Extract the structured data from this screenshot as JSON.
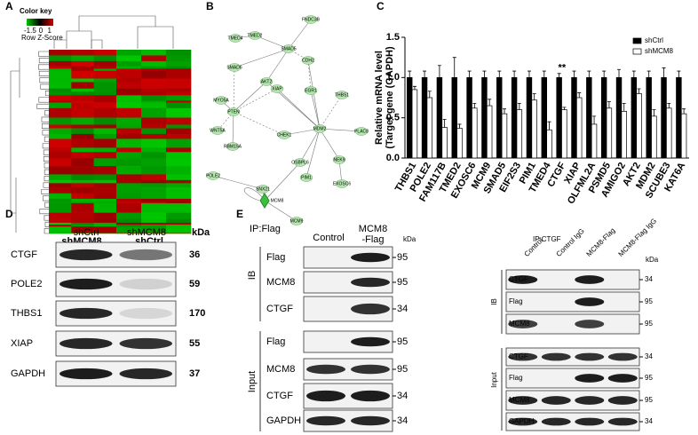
{
  "panel_labels": [
    "A",
    "B",
    "C",
    "D",
    "E"
  ],
  "heatmap": {
    "key_title": "Color key",
    "key_ticks": [
      "-1.5",
      "0",
      "1"
    ],
    "key_label": "Row Z-Score",
    "groups": [
      "shMCM8",
      "shCtrl"
    ]
  },
  "network": {
    "nodes": [
      "TMED4",
      "TMED2",
      "FNDC3B",
      "SMAD5",
      "CDH2",
      "SMAD6",
      "AKT2",
      "XIAP",
      "EGR1",
      "THBS1",
      "MYO5A",
      "PTEN",
      "WNT5A",
      "RBM15A",
      "CHEK1",
      "MDM2",
      "PLAC8",
      "POLE2",
      "SNX21",
      "OSBPL6",
      "PIM1",
      "NEK9",
      "EXOSC6",
      "MCM8",
      "MCM9"
    ]
  },
  "chart_data": {
    "type": "bar",
    "ylabel": [
      "Relative mRNA level",
      "(Target gene (GAPDH)"
    ],
    "categories": [
      "THBS1",
      "POLE2",
      "FAM117B",
      "TMED2",
      "EXOSC6",
      "MCM9",
      "SMAD5",
      "EIF2S3",
      "PIM1",
      "TMED4",
      "CTGF",
      "XIAP",
      "OLFML2A",
      "PSMD5",
      "AMIGO2",
      "AKT2",
      "MDM2",
      "SCUBE3",
      "KAT6A"
    ],
    "series": [
      {
        "name": "shCtrl",
        "color": "#000000",
        "values": [
          1,
          1,
          1,
          1,
          1,
          1,
          1,
          1,
          1,
          1,
          1,
          1,
          1,
          1,
          1,
          1,
          1,
          1,
          1
        ],
        "errors": [
          0.08,
          0.08,
          0.15,
          0.25,
          0.08,
          0.08,
          0.08,
          0.08,
          0.08,
          0.08,
          0.05,
          0.08,
          0.08,
          0.08,
          0.1,
          0.08,
          0.08,
          0.12,
          0.08
        ]
      },
      {
        "name": "shMCM8",
        "color": "#ffffff",
        "values": [
          0.85,
          0.75,
          0.38,
          0.37,
          0.62,
          0.65,
          0.55,
          0.6,
          0.72,
          0.35,
          0.6,
          0.75,
          0.42,
          0.62,
          0.58,
          0.8,
          0.52,
          0.62,
          0.55
        ],
        "errors": [
          0.04,
          0.08,
          0.1,
          0.05,
          0.06,
          0.08,
          0.06,
          0.08,
          0.08,
          0.1,
          0.03,
          0.06,
          0.1,
          0.08,
          0.1,
          0.06,
          0.08,
          0.06,
          0.06
        ]
      }
    ],
    "annotation": "**",
    "ylim": [
      0,
      1.5
    ],
    "yticks": [
      {
        "value": 0,
        "label": "0.0"
      },
      {
        "value": 0.5,
        "label": "0.5"
      },
      {
        "value": 1,
        "label": "1.0"
      },
      {
        "value": 1.5,
        "label": "1.5"
      }
    ],
    "legend": "upper right"
  },
  "blot_d": {
    "columns": [
      "shCtrl",
      "shMCM8"
    ],
    "unit": "kDa",
    "rows": [
      {
        "label": "CTGF",
        "kda": 36
      },
      {
        "label": "POLE2",
        "kda": 59
      },
      {
        "label": "THBS1",
        "kda": 170
      },
      {
        "label": "XIAP",
        "kda": 55
      },
      {
        "label": "GAPDH",
        "kda": 37
      }
    ]
  },
  "blot_e_flag": {
    "title": "IP:Flag",
    "columns": [
      [
        "Control"
      ],
      [
        "MCM8",
        "-Flag"
      ]
    ],
    "unit": "kDa",
    "groups": [
      {
        "label": "IB",
        "rows": [
          {
            "label": "Flag",
            "kda": 95
          },
          {
            "label": "MCM8",
            "kda": 95
          },
          {
            "label": "CTGF",
            "kda": 34
          }
        ]
      },
      {
        "label": "Input",
        "rows": [
          {
            "label": "Flag",
            "kda": 95
          },
          {
            "label": "MCM8",
            "kda": 95
          },
          {
            "label": "CTGF",
            "kda": 34
          },
          {
            "label": "GAPDH",
            "kda": 34
          }
        ]
      }
    ]
  },
  "blot_e_ctgf": {
    "title": "IP:CTGF",
    "columns": [
      "Control",
      "Control IgG",
      "MCM8-Flag",
      "MCM8-Flag IgG"
    ],
    "unit": "kDa",
    "groups": [
      {
        "label": "IB",
        "rows": [
          {
            "label": "CTGF",
            "kda": 34
          },
          {
            "label": "Flag",
            "kda": 95
          },
          {
            "label": "MCM8",
            "kda": 95
          }
        ]
      },
      {
        "label": "Input",
        "rows": [
          {
            "label": "CTGF",
            "kda": 34
          },
          {
            "label": "Flag",
            "kda": 95
          },
          {
            "label": "MCM8",
            "kda": 95
          },
          {
            "label": "GAPDH",
            "kda": 34
          }
        ]
      }
    ]
  }
}
